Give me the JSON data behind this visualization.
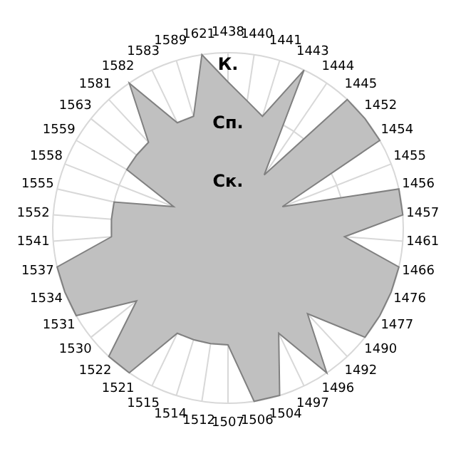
{
  "chart_data": {
    "type": "radar",
    "categories": [
      "1438",
      "1440",
      "1441",
      "1443",
      "1444",
      "1445",
      "1452",
      "1454",
      "1455",
      "1456",
      "1457",
      "1461",
      "1466",
      "1476",
      "1477",
      "1490",
      "1492",
      "1496",
      "1497",
      "1504",
      "1506",
      "1507",
      "1512",
      "1514",
      "1515",
      "1521",
      "1522",
      "1530",
      "1531",
      "1534",
      "1537",
      "1541",
      "1552",
      "1555",
      "1558",
      "1559",
      "1563",
      "1581",
      "1582",
      "1583",
      "1589",
      "1621"
    ],
    "series": [
      {
        "color": "#c0c0c0",
        "values": [
          2.5,
          2.2,
          2,
          3,
          1.1,
          3,
          3,
          3,
          1,
          3,
          3,
          2,
          3,
          3,
          3,
          3,
          2,
          3,
          2,
          3,
          3,
          2,
          2,
          2,
          2,
          3,
          3,
          2,
          3,
          3,
          3,
          2,
          2,
          2,
          1,
          2,
          2,
          2,
          3,
          2,
          2,
          3
        ]
      }
    ],
    "ylim": [
      0,
      3
    ],
    "yticks": [
      {
        "value": 1,
        "label": "Ск."
      },
      {
        "value": 2,
        "label": "Сп."
      },
      {
        "value": 3,
        "label": "К."
      }
    ],
    "grid": true
  }
}
